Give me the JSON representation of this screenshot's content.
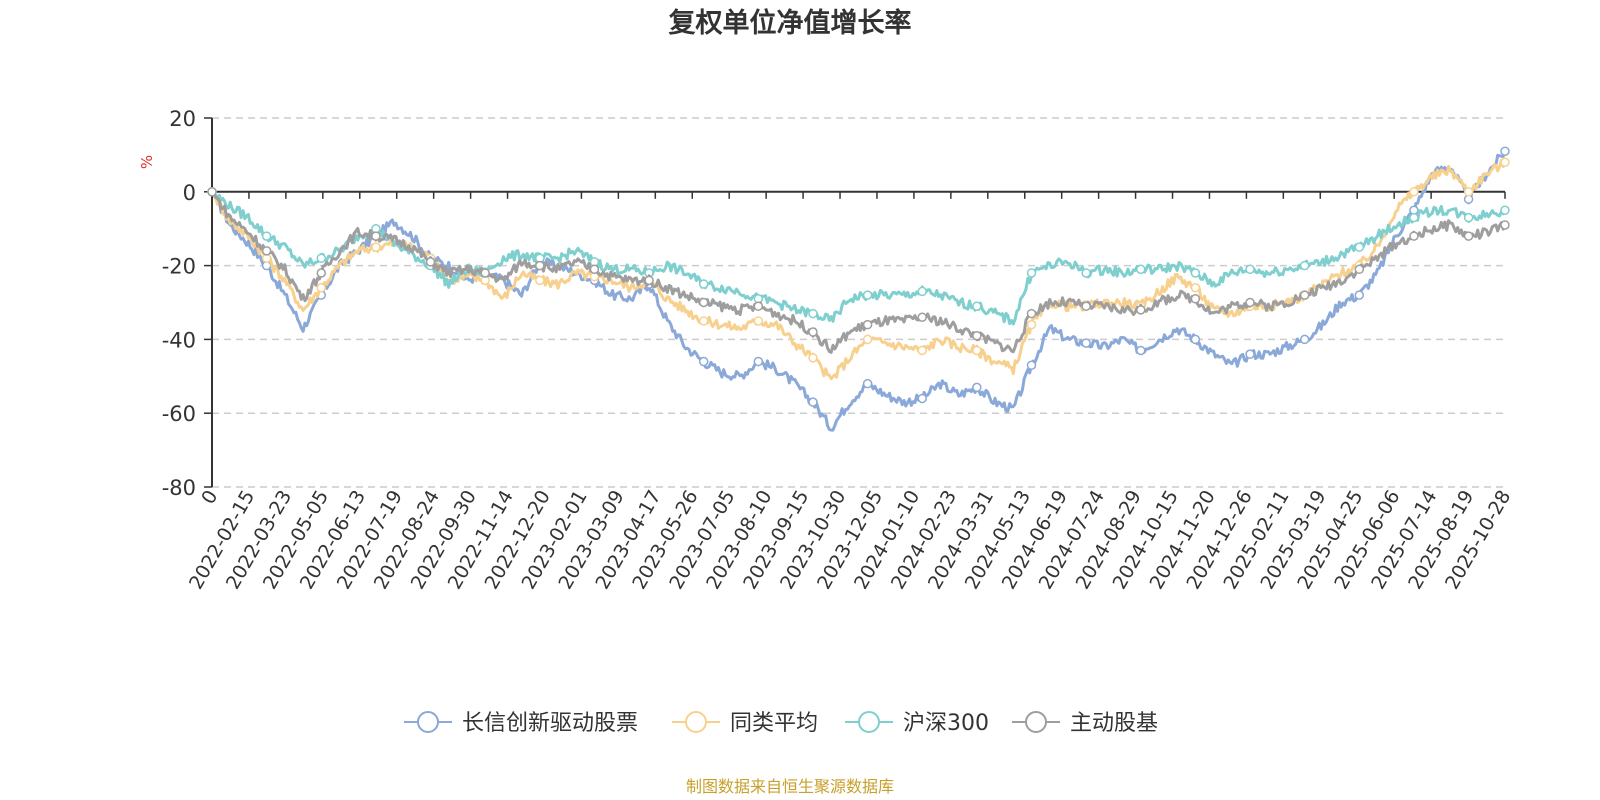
{
  "chart_data": {
    "type": "line",
    "title": "复权单位净值增长率",
    "ylabel": "%",
    "ylim": [
      -80,
      20
    ],
    "yticks": [
      20,
      0,
      -20,
      -40,
      -60,
      -80
    ],
    "grid": true,
    "legend_position": "bottom",
    "source": "制图数据来自恒生聚源数据库",
    "x_tick_labels": [
      "0",
      "2022-02-15",
      "2022-03-23",
      "2022-05-05",
      "2022-06-13",
      "2022-07-19",
      "2022-08-24",
      "2022-09-30",
      "2022-11-14",
      "2022-12-20",
      "2023-02-01",
      "2023-03-09",
      "2023-04-17",
      "2023-05-26",
      "2023-07-05",
      "2023-08-10",
      "2023-09-15",
      "2023-10-30",
      "2023-12-05",
      "2024-01-10",
      "2024-02-23",
      "2024-03-31",
      "2024-05-13",
      "2024-06-19",
      "2024-07-24",
      "2024-08-29",
      "2024-10-15",
      "2024-11-20",
      "2024-12-26",
      "2025-02-11",
      "2025-03-19",
      "2025-04-25",
      "2025-06-06",
      "2025-07-14",
      "2025-08-19",
      "2025-10-28"
    ],
    "x": [
      0,
      1,
      2,
      3,
      4,
      5,
      6,
      7,
      8,
      9,
      10,
      11,
      12,
      13,
      14,
      15,
      16,
      17,
      18,
      19,
      20,
      21,
      22,
      23,
      24,
      25,
      26,
      27,
      28,
      29,
      30,
      31,
      32,
      33,
      34,
      35,
      36,
      37,
      38,
      39,
      40,
      41,
      42,
      43,
      44,
      45,
      46,
      47,
      48,
      49,
      50,
      51,
      52,
      53,
      54,
      55,
      56,
      57,
      58,
      59,
      60,
      61,
      62,
      63,
      64,
      65,
      66,
      67,
      68,
      69,
      70,
      71
    ],
    "series": [
      {
        "name": "长信创新驱动股票",
        "color": "#8aa8d8",
        "values": [
          0,
          -9,
          -14,
          -20,
          -28,
          -37,
          -28,
          -20,
          -16,
          -12,
          -8,
          -12,
          -18,
          -20,
          -24,
          -22,
          -24,
          -28,
          -19,
          -20,
          -22,
          -24,
          -28,
          -29,
          -25,
          -35,
          -42,
          -46,
          -49,
          -50,
          -46,
          -48,
          -52,
          -57,
          -64,
          -57,
          -52,
          -55,
          -57,
          -56,
          -52,
          -55,
          -53,
          -57,
          -59,
          -47,
          -37,
          -40,
          -41,
          -42,
          -40,
          -43,
          -40,
          -37,
          -40,
          -44,
          -47,
          -44,
          -44,
          -42,
          -40,
          -36,
          -30,
          -28,
          -22,
          -12,
          -5,
          5,
          7,
          -2,
          5,
          11
        ]
      },
      {
        "name": "同类平均",
        "color": "#f8d08e",
        "values": [
          0,
          -8,
          -12,
          -18,
          -24,
          -32,
          -26,
          -20,
          -16,
          -15,
          -14,
          -15,
          -18,
          -24,
          -23,
          -24,
          -29,
          -22,
          -24,
          -25,
          -22,
          -23,
          -24,
          -26,
          -24,
          -29,
          -32,
          -35,
          -36,
          -37,
          -35,
          -36,
          -41,
          -45,
          -51,
          -45,
          -40,
          -41,
          -42,
          -43,
          -40,
          -42,
          -43,
          -46,
          -48,
          -36,
          -30,
          -31,
          -31,
          -30,
          -30,
          -31,
          -27,
          -23,
          -26,
          -32,
          -33,
          -31,
          -31,
          -30,
          -28,
          -25,
          -22,
          -20,
          -15,
          -5,
          0,
          4,
          6,
          0,
          5,
          8
        ]
      },
      {
        "name": "沪深300",
        "color": "#7ecfce",
        "values": [
          0,
          -4,
          -7,
          -12,
          -15,
          -20,
          -18,
          -16,
          -12,
          -10,
          -14,
          -17,
          -20,
          -25,
          -21,
          -22,
          -18,
          -17,
          -18,
          -18,
          -16,
          -19,
          -21,
          -21,
          -22,
          -20,
          -22,
          -25,
          -26,
          -27,
          -29,
          -30,
          -32,
          -33,
          -35,
          -29,
          -28,
          -28,
          -28,
          -27,
          -28,
          -30,
          -31,
          -33,
          -35,
          -22,
          -20,
          -19,
          -22,
          -21,
          -22,
          -21,
          -21,
          -20,
          -22,
          -25,
          -22,
          -21,
          -22,
          -21,
          -20,
          -19,
          -17,
          -15,
          -12,
          -9,
          -7,
          -5,
          -5,
          -7,
          -6,
          -5
        ]
      },
      {
        "name": "主动股基",
        "color": "#9e9e9e",
        "values": [
          0,
          -7,
          -11,
          -16,
          -21,
          -29,
          -22,
          -16,
          -11,
          -12,
          -13,
          -15,
          -19,
          -22,
          -21,
          -22,
          -24,
          -19,
          -20,
          -21,
          -19,
          -21,
          -23,
          -24,
          -24,
          -26,
          -28,
          -30,
          -31,
          -32,
          -31,
          -33,
          -35,
          -38,
          -43,
          -38,
          -36,
          -35,
          -35,
          -34,
          -35,
          -37,
          -39,
          -41,
          -43,
          -33,
          -30,
          -30,
          -31,
          -31,
          -32,
          -32,
          -30,
          -28,
          -29,
          -33,
          -31,
          -30,
          -31,
          -30,
          -28,
          -26,
          -24,
          -21,
          -18,
          -14,
          -12,
          -10,
          -9,
          -12,
          -11,
          -9
        ]
      }
    ]
  }
}
